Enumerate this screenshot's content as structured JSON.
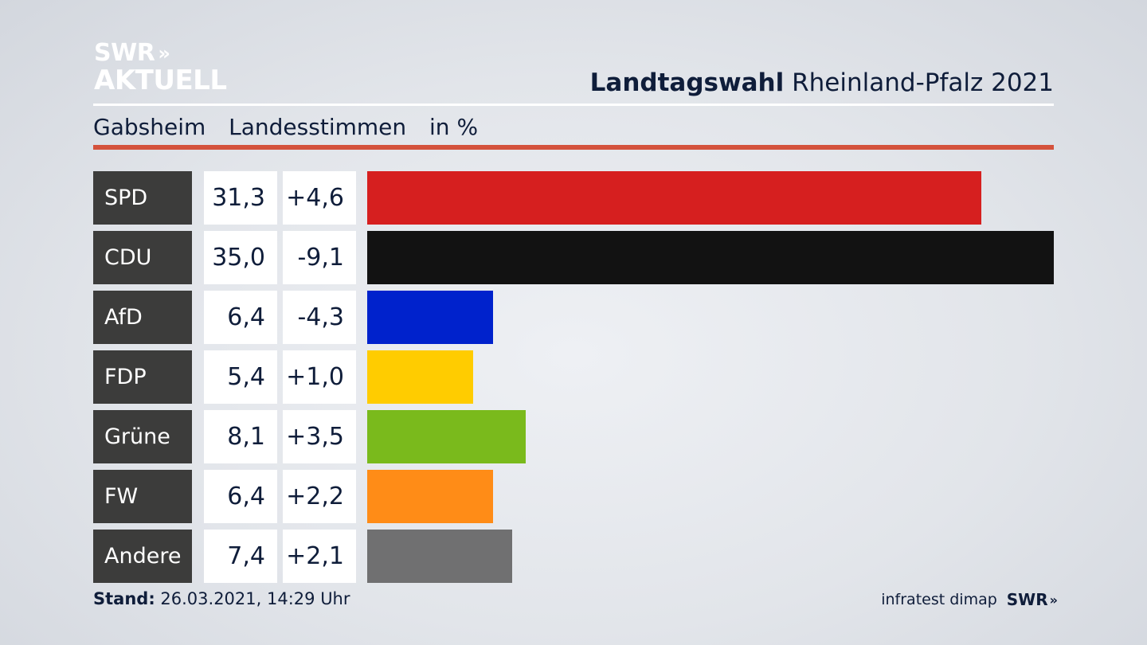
{
  "logo": {
    "line1": "SWR",
    "line2": "AKTUELL",
    "chevrons": "»"
  },
  "header": {
    "title_bold": "Landtagswahl",
    "title_rest": "Rheinland-Pfalz 2021"
  },
  "subheader": {
    "place": "Gabsheim",
    "vote_type": "Landesstimmen",
    "unit": "in %"
  },
  "footer": {
    "stand_label": "Stand:",
    "stand_value": "26.03.2021, 14:29 Uhr",
    "source": "infratest dimap",
    "brand": "SWR",
    "brand_chevrons": "»"
  },
  "colors": {
    "accent_red_rule": "#d4523c",
    "party_label_bg": "#3c3c3b"
  },
  "chart_data": {
    "type": "bar",
    "orientation": "horizontal",
    "categories": [
      "SPD",
      "CDU",
      "AfD",
      "FDP",
      "Grüne",
      "FW",
      "Andere"
    ],
    "values": [
      31.3,
      35.0,
      6.4,
      5.4,
      8.1,
      6.4,
      7.4
    ],
    "value_labels": [
      "31,3",
      "35,0",
      "6,4",
      "5,4",
      "8,1",
      "6,4",
      "7,4"
    ],
    "diff_labels": [
      "+4,6",
      "-9,1",
      "-4,3",
      "+1,0",
      "+3,5",
      "+2,2",
      "+2,1"
    ],
    "diffs": [
      4.6,
      -9.1,
      -4.3,
      1.0,
      3.5,
      2.2,
      2.1
    ],
    "bar_colors": [
      "#d61f1f",
      "#121212",
      "#0022cc",
      "#ffcc00",
      "#7aba1c",
      "#ff8c17",
      "#707071"
    ],
    "xlim": [
      0,
      35.0
    ],
    "title": "",
    "xlabel": "",
    "ylabel": ""
  }
}
